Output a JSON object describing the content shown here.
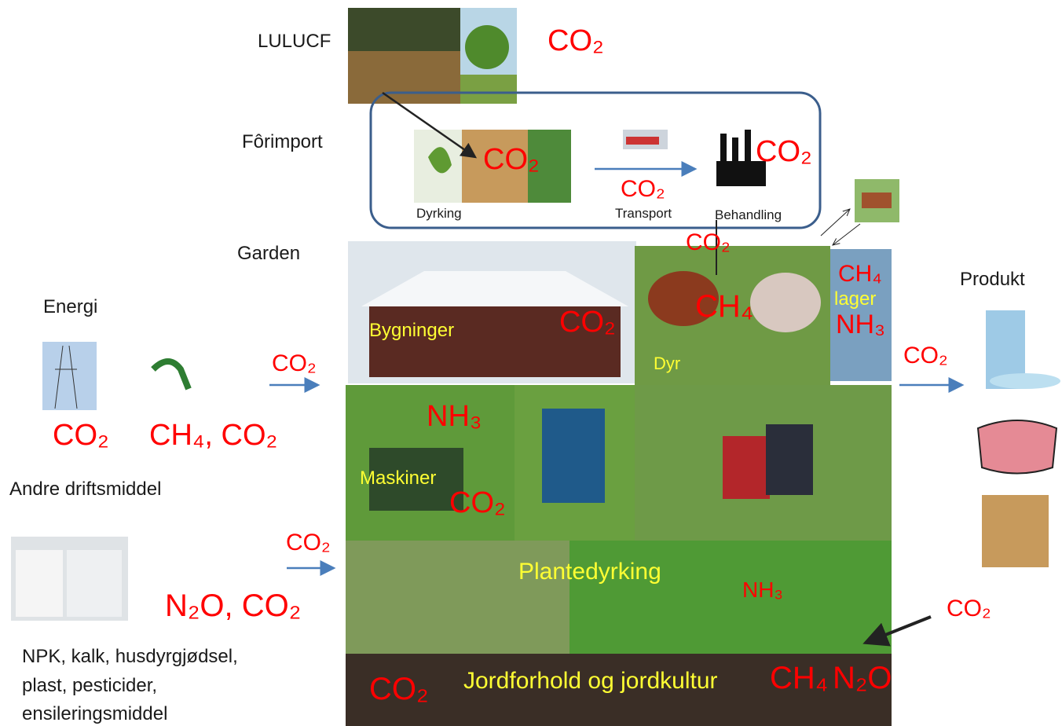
{
  "lulucf": {
    "label": "LULUCF",
    "emission": "CO₂"
  },
  "feed_import": {
    "label": "Fôrimport",
    "cultivation_emission": "CO₂",
    "transport_emission": "CO₂",
    "processing_emission": "CO₂",
    "steps": [
      "Dyrking",
      "Transport",
      "Behandling"
    ]
  },
  "farm": {
    "label": "Garden",
    "buildings": {
      "label": "Bygninger",
      "emission": "CO₂"
    },
    "animals": {
      "label": "Dyr",
      "emissions": [
        "CO₂",
        "CH₄"
      ]
    },
    "storage": {
      "label": "lager",
      "emissions": [
        "CH₄",
        "NH₃"
      ]
    },
    "machines": {
      "label": "Maskiner",
      "emissions": [
        "NH₃",
        "CO₂"
      ]
    },
    "crops": {
      "label": "Plantedyrking",
      "emission": "NH₃"
    },
    "soil": {
      "label": "Jordforhold og jordkultur",
      "emissions": [
        "CO₂",
        "CH₄",
        "N₂O"
      ]
    }
  },
  "energy": {
    "label": "Energi",
    "emissions": [
      "CO₂",
      "CH₄, CO₂"
    ],
    "flow": "CO₂"
  },
  "inputs": {
    "label": "Andre driftsmiddel",
    "emission": "N₂O, CO₂",
    "flow": "CO₂",
    "items": [
      "NPK, kalk, husdyrgjødsel,",
      "plast, pesticider,",
      "ensileringsmiddel"
    ]
  },
  "product": {
    "label": "Produkt",
    "flow": "CO₂"
  },
  "carbon_uptake": "CO₂"
}
